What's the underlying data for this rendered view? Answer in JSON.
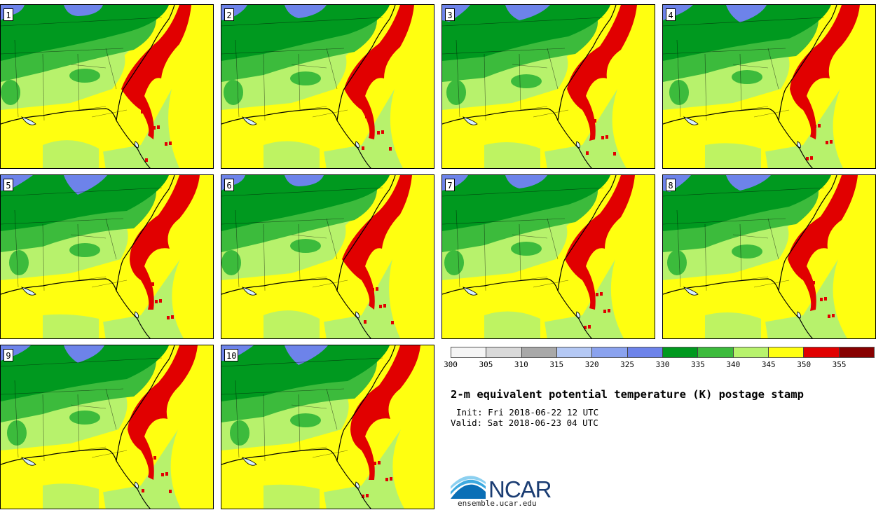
{
  "members": [
    "1",
    "2",
    "3",
    "4",
    "5",
    "6",
    "7",
    "8",
    "9",
    "10"
  ],
  "colorbar": {
    "ticks": [
      "300",
      "305",
      "310",
      "315",
      "320",
      "325",
      "330",
      "335",
      "340",
      "345",
      "350",
      "355"
    ],
    "colors": [
      "#f5f5f5",
      "#d9d9d9",
      "#a8a8a8",
      "#b4c8f4",
      "#8aa2ee",
      "#6d83ea",
      "#00991f",
      "#3cbb3c",
      "#b7f26c",
      "#ffff10",
      "#e10000",
      "#870000"
    ]
  },
  "title": "2-m equivalent potential temperature (K) postage stamp",
  "init_text": "Init: Fri 2018-06-22 12 UTC",
  "valid_text": "Valid: Sat 2018-06-23 04 UTC",
  "logo_text": "NCAR",
  "site_text": "ensemble.ucar.edu",
  "map_colors": {
    "dark_green": "#00991f",
    "green": "#3cbb3c",
    "light_green": "#b7f26c",
    "yellow": "#ffff10",
    "red": "#e10000",
    "blue": "#6d83ea",
    "lake": "#d8f0ff"
  }
}
